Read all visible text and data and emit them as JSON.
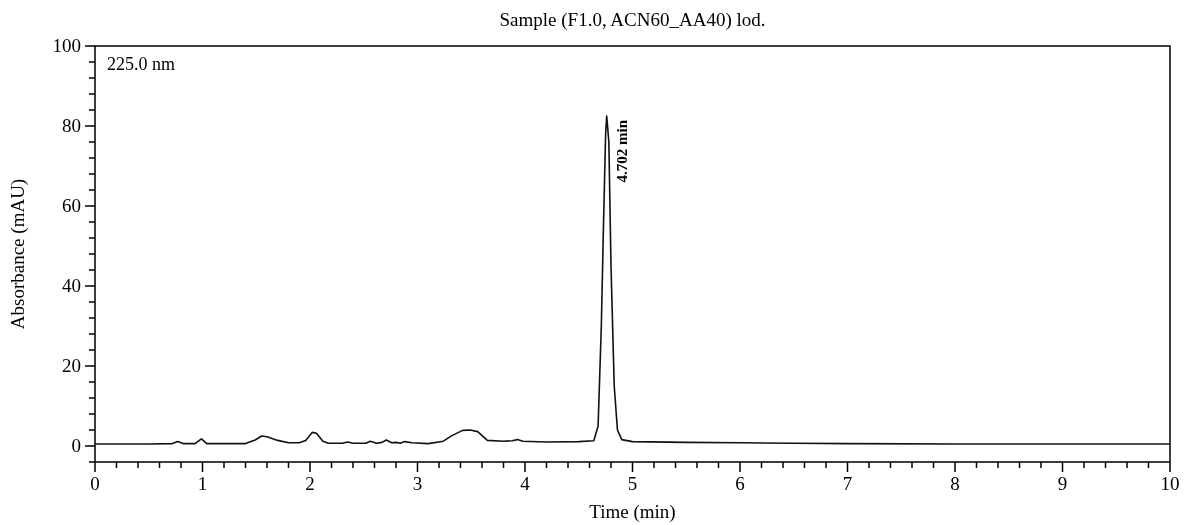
{
  "chart_data": {
    "type": "line",
    "title": "Sample (F1.0, ACN60_AA40) lod.",
    "xlabel": "Time (min)",
    "ylabel": "Absorbance (mAU)",
    "annotations": [
      "225.0 nm",
      {
        "text": "4.702 min",
        "x": 4.76,
        "y": 82.5
      }
    ],
    "series": [
      {
        "color": "#111111",
        "x": [
          0,
          0.5,
          0.72,
          0.77,
          0.82,
          0.93,
          0.99,
          1.04,
          1.1,
          1.4,
          1.49,
          1.55,
          1.6,
          1.7,
          1.8,
          1.9,
          1.96,
          2.02,
          2.06,
          2.12,
          2.17,
          2.3,
          2.35,
          2.4,
          2.52,
          2.56,
          2.62,
          2.67,
          2.71,
          2.76,
          2.8,
          2.84,
          2.88,
          2.95,
          3.1,
          3.24,
          3.32,
          3.42,
          3.49,
          3.56,
          3.65,
          3.8,
          3.88,
          3.93,
          3.98,
          4.2,
          4.5,
          4.64,
          4.68,
          4.71,
          4.73,
          4.75,
          4.76,
          4.78,
          4.8,
          4.83,
          4.86,
          4.9,
          5.0,
          5.5,
          6.0,
          6.5,
          7,
          8,
          9,
          10
        ],
        "values": [
          0.5,
          0.5,
          0.6,
          1.1,
          0.6,
          0.6,
          1.8,
          0.6,
          0.6,
          0.6,
          1.5,
          2.5,
          2.3,
          1.4,
          0.8,
          0.8,
          1.4,
          3.4,
          3.2,
          1.2,
          0.7,
          0.7,
          1.0,
          0.7,
          0.7,
          1.2,
          0.7,
          0.9,
          1.5,
          0.8,
          0.9,
          0.7,
          1.1,
          0.8,
          0.6,
          1.2,
          2.6,
          3.9,
          4.0,
          3.6,
          1.4,
          1.2,
          1.3,
          1.6,
          1.2,
          1.0,
          1.1,
          1.3,
          5,
          30,
          55,
          78,
          82.5,
          76,
          45,
          15,
          4,
          1.6,
          1.1,
          0.9,
          0.8,
          0.7,
          0.6,
          0.5,
          0.5,
          0.5
        ]
      }
    ],
    "xlim": [
      0,
      10
    ],
    "xticks": [
      0,
      {
        "value": 0.2,
        "label": null
      },
      {
        "value": 0.4,
        "label": null
      },
      {
        "value": 0.6,
        "label": null
      },
      {
        "value": 0.8,
        "label": null
      },
      1,
      {
        "value": 1.2,
        "label": null
      },
      {
        "value": 1.4,
        "label": null
      },
      {
        "value": 1.6,
        "label": null
      },
      {
        "value": 1.8,
        "label": null
      },
      2,
      {
        "value": 2.2,
        "label": null
      },
      {
        "value": 2.4,
        "label": null
      },
      {
        "value": 2.6,
        "label": null
      },
      {
        "value": 2.8,
        "label": null
      },
      3,
      {
        "value": 3.2,
        "label": null
      },
      {
        "value": 3.4,
        "label": null
      },
      {
        "value": 3.6,
        "label": null
      },
      {
        "value": 3.8,
        "label": null
      },
      4,
      {
        "value": 4.2,
        "label": null
      },
      {
        "value": 4.4,
        "label": null
      },
      {
        "value": 4.6,
        "label": null
      },
      {
        "value": 4.8,
        "label": null
      },
      5,
      {
        "value": 5.2,
        "label": null
      },
      {
        "value": 5.4,
        "label": null
      },
      {
        "value": 5.6,
        "label": null
      },
      {
        "value": 5.8,
        "label": null
      },
      6,
      {
        "value": 6.2,
        "label": null
      },
      {
        "value": 6.4,
        "label": null
      },
      {
        "value": 6.6,
        "label": null
      },
      {
        "value": 6.8,
        "label": null
      },
      7,
      {
        "value": 7.2,
        "label": null
      },
      {
        "value": 7.4,
        "label": null
      },
      {
        "value": 7.6,
        "label": null
      },
      {
        "value": 7.8,
        "label": null
      },
      8,
      {
        "value": 8.2,
        "label": null
      },
      {
        "value": 8.4,
        "label": null
      },
      {
        "value": 8.6,
        "label": null
      },
      {
        "value": 8.8,
        "label": null
      },
      9,
      {
        "value": 9.2,
        "label": null
      },
      {
        "value": 9.4,
        "label": null
      },
      {
        "value": 9.6,
        "label": null
      },
      {
        "value": 9.8,
        "label": null
      },
      10
    ],
    "ylim": [
      -4,
      100
    ],
    "yticks": [
      {
        "value": -4,
        "label": null
      },
      0,
      {
        "value": 4,
        "label": null
      },
      {
        "value": 8,
        "label": null
      },
      {
        "value": 12,
        "label": null
      },
      {
        "value": 16,
        "label": null
      },
      20,
      {
        "value": 24,
        "label": null
      },
      {
        "value": 28,
        "label": null
      },
      {
        "value": 32,
        "label": null
      },
      {
        "value": 36,
        "label": null
      },
      40,
      {
        "value": 44,
        "label": null
      },
      {
        "value": 48,
        "label": null
      },
      {
        "value": 52,
        "label": null
      },
      {
        "value": 56,
        "label": null
      },
      60,
      {
        "value": 64,
        "label": null
      },
      {
        "value": 68,
        "label": null
      },
      {
        "value": 72,
        "label": null
      },
      {
        "value": 76,
        "label": null
      },
      80,
      {
        "value": 84,
        "label": null
      },
      {
        "value": 88,
        "label": null
      },
      {
        "value": 92,
        "label": null
      },
      {
        "value": 96,
        "label": null
      },
      100
    ],
    "marker": "none",
    "line_style": "solid"
  }
}
